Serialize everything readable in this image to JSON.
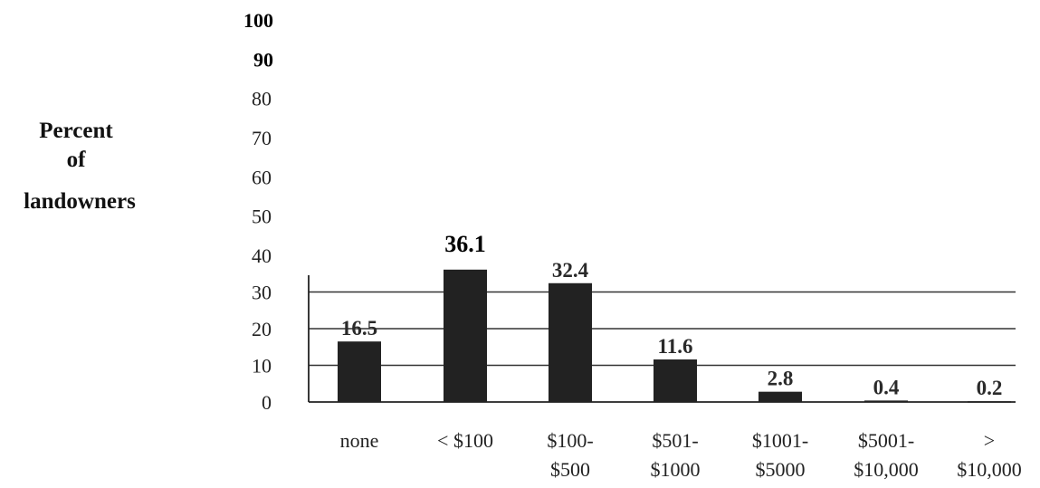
{
  "chart_data": {
    "type": "bar",
    "title": "",
    "ylabel_lines": [
      "Percent",
      "of",
      "landowners"
    ],
    "xlabel": "",
    "categories": [
      [
        "none"
      ],
      [
        "< $100"
      ],
      [
        "$100-",
        "$500"
      ],
      [
        "$501-",
        "$1000"
      ],
      [
        "$1001-",
        "$5000"
      ],
      [
        "$5001-",
        "$10,000"
      ],
      [
        ">",
        "$10,000"
      ]
    ],
    "values": [
      16.5,
      36.1,
      32.4,
      11.6,
      2.8,
      0.4,
      0.2
    ],
    "data_labels": [
      "16.5",
      "36.1",
      "32.4",
      "11.6",
      "2.8",
      "0.4",
      "0.2"
    ],
    "ylim": [
      0,
      100
    ],
    "yticks": [
      "0",
      "10",
      "20",
      "30",
      "40",
      "50",
      "60",
      "70",
      "80",
      "90",
      "100"
    ],
    "grid_values": [
      10,
      20,
      30
    ],
    "grid": true,
    "legend": "none",
    "bar_color": "#222222",
    "grid_color": "#333333"
  }
}
